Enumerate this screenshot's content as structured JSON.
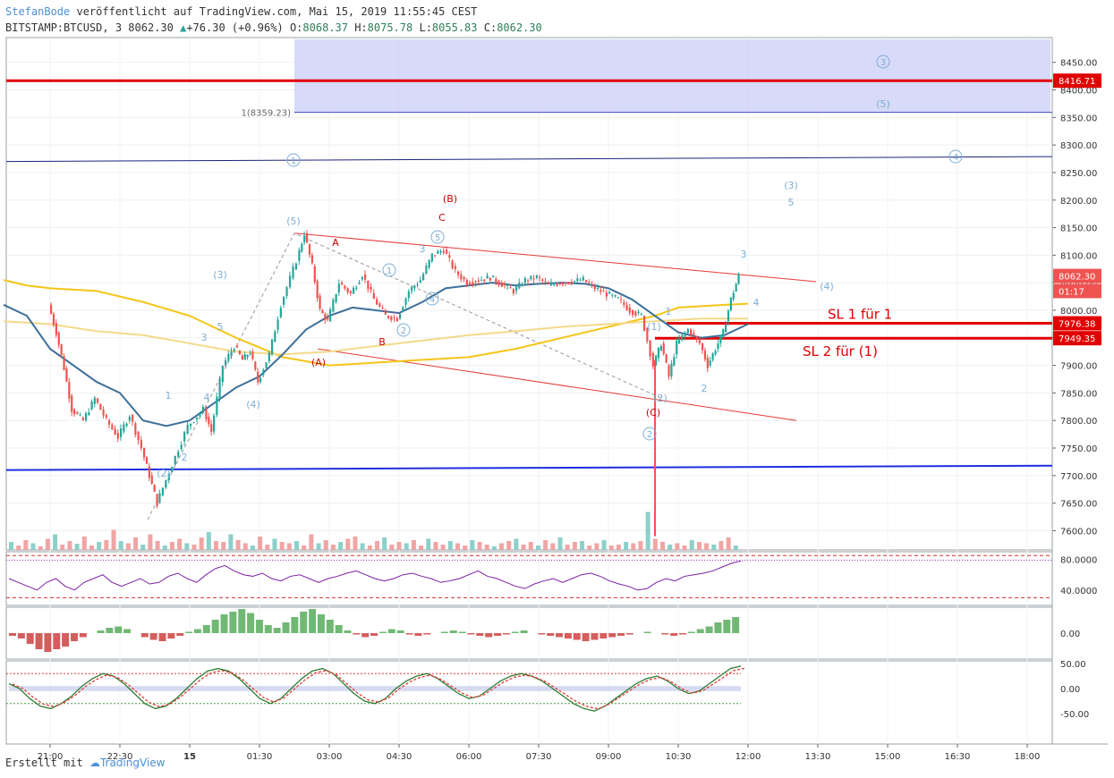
{
  "header": {
    "author": "StefanBode",
    "published": "veröffentlicht auf TradingView.com, Mai 15, 2019 11:55:45 CEST",
    "symbol": "BITSTAMP:BTCUSD, 3",
    "last": "8062.30",
    "change": "+76.30 (+0.96%)",
    "o_label": "O:",
    "o": "8068.37",
    "h_label": "H:",
    "h": "8075.78",
    "l_label": "L:",
    "l": "8055.83",
    "c_label": "C:",
    "c": "8062.30"
  },
  "footer": {
    "created": "Erstellt mit",
    "brand": "TradingView"
  },
  "chart_data": {
    "type": "line",
    "ylim": [
      7565,
      8495
    ],
    "y_ticks": [
      "8450.00",
      "8400.00",
      "8350.00",
      "8300.00",
      "8250.00",
      "8200.00",
      "8150.00",
      "8100.00",
      "8050.00",
      "8000.00",
      "7950.00",
      "7900.00",
      "7850.00",
      "7800.00",
      "7750.00",
      "7700.00",
      "7650.00",
      "7600.00"
    ],
    "x_ticks": [
      "21:00",
      "22:30",
      "15",
      "01:30",
      "03:00",
      "04:30",
      "06:00",
      "07:30",
      "09:00",
      "10:30",
      "12:00",
      "13:30",
      "15:00",
      "16:30",
      "18:00"
    ],
    "price_tags": [
      {
        "label": "8416.71",
        "value": 8416.71,
        "color": "#e00000"
      },
      {
        "label": "8062.30",
        "value": 8062.3,
        "color": "#ef5350"
      },
      {
        "label": "01:17",
        "value": 8035,
        "color": "#ef5350"
      },
      {
        "label": "7976.38",
        "value": 7976.38,
        "color": "#e00000"
      },
      {
        "label": "7949.35",
        "value": 7949.35,
        "color": "#e00000"
      }
    ],
    "horizontal_lines": [
      {
        "value": 8416.71,
        "color": "#e00000"
      },
      {
        "value": 7976.38,
        "color": "#e00000",
        "label": "SL 1 für 1"
      },
      {
        "value": 7949.35,
        "color": "#e00000",
        "label": "SL 2 für (1)"
      }
    ],
    "fib_label": "1(8359.23)",
    "price_path": [
      [
        "21:00",
        8010
      ],
      [
        "21:10",
        7960
      ],
      [
        "21:20",
        7895
      ],
      [
        "21:30",
        7820
      ],
      [
        "21:45",
        7800
      ],
      [
        "22:00",
        7840
      ],
      [
        "22:15",
        7800
      ],
      [
        "22:30",
        7770
      ],
      [
        "22:45",
        7810
      ],
      [
        "23:00",
        7750
      ],
      [
        "23:10",
        7700
      ],
      [
        "23:20",
        7650
      ],
      [
        "23:40",
        7720
      ],
      [
        "00:00",
        7790
      ],
      [
        "00:20",
        7820
      ],
      [
        "00:30",
        7780
      ],
      [
        "00:45",
        7900
      ],
      [
        "01:00",
        7935
      ],
      [
        "01:10",
        7910
      ],
      [
        "01:20",
        7925
      ],
      [
        "01:30",
        7870
      ],
      [
        "01:45",
        7920
      ],
      [
        "02:00",
        8010
      ],
      [
        "02:20",
        8090
      ],
      [
        "02:30",
        8140
      ],
      [
        "02:40",
        8080
      ],
      [
        "02:50",
        8000
      ],
      [
        "03:00",
        7980
      ],
      [
        "03:15",
        8050
      ],
      [
        "03:30",
        8030
      ],
      [
        "03:45",
        8065
      ],
      [
        "04:00",
        8020
      ],
      [
        "04:15",
        7990
      ],
      [
        "04:30",
        7985
      ],
      [
        "04:45",
        8035
      ],
      [
        "05:00",
        8055
      ],
      [
        "05:15",
        8100
      ],
      [
        "05:30",
        8110
      ],
      [
        "05:45",
        8070
      ],
      [
        "06:00",
        8050
      ],
      [
        "06:15",
        8055
      ],
      [
        "06:30",
        8060
      ],
      [
        "07:00",
        8035
      ],
      [
        "07:15",
        8055
      ],
      [
        "07:30",
        8060
      ],
      [
        "07:45",
        8045
      ],
      [
        "08:00",
        8050
      ],
      [
        "08:30",
        8055
      ],
      [
        "08:45",
        8040
      ],
      [
        "09:00",
        8030
      ],
      [
        "09:15",
        8020
      ],
      [
        "09:30",
        8000
      ],
      [
        "09:45",
        7990
      ],
      [
        "10:00",
        7900
      ],
      [
        "10:10",
        7940
      ],
      [
        "10:20",
        7880
      ],
      [
        "10:30",
        7940
      ],
      [
        "10:45",
        7965
      ],
      [
        "11:00",
        7940
      ],
      [
        "11:10",
        7900
      ],
      [
        "11:20",
        7930
      ],
      [
        "11:30",
        7960
      ],
      [
        "11:40",
        8020
      ],
      [
        "11:50",
        8062
      ]
    ],
    "series": [
      {
        "values": [
          [
            "20:00",
            8055
          ],
          [
            "20:30",
            8045
          ],
          [
            "21:00",
            8040
          ],
          [
            "22:00",
            8035
          ],
          [
            "23:00",
            8015
          ],
          [
            "00:00",
            7990
          ],
          [
            "01:00",
            7950
          ],
          [
            "02:00",
            7915
          ],
          [
            "03:00",
            7900
          ],
          [
            "04:00",
            7905
          ],
          [
            "05:00",
            7910
          ],
          [
            "06:00",
            7915
          ],
          [
            "07:00",
            7930
          ],
          [
            "08:00",
            7950
          ],
          [
            "09:00",
            7970
          ],
          [
            "10:00",
            7990
          ],
          [
            "10:30",
            8005
          ],
          [
            "11:30",
            8010
          ],
          [
            "12:00",
            8012
          ]
        ]
      },
      {
        "values": [
          [
            "20:00",
            7980
          ],
          [
            "21:00",
            7975
          ],
          [
            "22:00",
            7962
          ],
          [
            "23:00",
            7955
          ],
          [
            "00:00",
            7940
          ],
          [
            "01:00",
            7925
          ],
          [
            "02:00",
            7920
          ],
          [
            "03:00",
            7925
          ],
          [
            "04:00",
            7935
          ],
          [
            "05:00",
            7945
          ],
          [
            "06:00",
            7955
          ],
          [
            "07:00",
            7962
          ],
          [
            "08:00",
            7970
          ],
          [
            "09:00",
            7975
          ],
          [
            "10:00",
            7980
          ],
          [
            "11:00",
            7985
          ],
          [
            "12:00",
            7985
          ]
        ]
      },
      {
        "values": [
          [
            "20:00",
            8010
          ],
          [
            "20:30",
            7990
          ],
          [
            "21:00",
            7930
          ],
          [
            "21:30",
            7900
          ],
          [
            "22:00",
            7870
          ],
          [
            "22:30",
            7850
          ],
          [
            "23:00",
            7800
          ],
          [
            "23:30",
            7790
          ],
          [
            "00:00",
            7800
          ],
          [
            "00:30",
            7830
          ],
          [
            "01:00",
            7860
          ],
          [
            "01:30",
            7880
          ],
          [
            "02:00",
            7920
          ],
          [
            "02:30",
            7965
          ],
          [
            "03:00",
            7990
          ],
          [
            "03:30",
            8005
          ],
          [
            "04:00",
            8000
          ],
          [
            "04:30",
            7995
          ],
          [
            "05:00",
            8015
          ],
          [
            "05:30",
            8040
          ],
          [
            "06:00",
            8045
          ],
          [
            "06:30",
            8050
          ],
          [
            "07:00",
            8045
          ],
          [
            "07:30",
            8048
          ],
          [
            "08:00",
            8050
          ],
          [
            "08:30",
            8048
          ],
          [
            "09:00",
            8040
          ],
          [
            "09:30",
            8020
          ],
          [
            "10:00",
            7990
          ],
          [
            "10:30",
            7960
          ],
          [
            "11:00",
            7950
          ],
          [
            "11:30",
            7955
          ],
          [
            "12:00",
            7975
          ]
        ]
      }
    ],
    "volume": [
      18,
      10,
      22,
      15,
      8,
      25,
      35,
      12,
      20,
      14,
      30,
      10,
      18,
      22,
      45,
      20,
      15,
      28,
      12,
      35,
      20,
      10,
      18,
      25,
      15,
      12,
      28,
      40,
      20,
      18,
      35,
      22,
      15,
      10,
      30,
      12,
      25,
      18,
      15,
      20,
      10,
      35,
      15,
      22,
      12,
      18,
      25,
      30,
      15,
      10,
      20,
      28,
      12,
      18,
      15,
      22,
      10,
      25,
      18,
      12,
      20,
      15,
      10,
      22,
      18,
      12,
      8,
      15,
      20,
      25,
      12,
      18,
      10,
      22,
      15,
      28,
      12,
      18,
      20,
      10,
      15,
      22,
      10,
      12,
      18,
      15,
      20,
      85,
      25,
      18,
      12,
      15,
      10,
      22,
      18,
      15,
      12,
      20,
      28,
      10
    ],
    "rsi": {
      "ticks": [
        "80.0000",
        "40.0000"
      ],
      "bands": [
        85,
        30
      ],
      "values": [
        55,
        50,
        45,
        40,
        50,
        55,
        45,
        40,
        50,
        55,
        60,
        50,
        45,
        50,
        55,
        48,
        50,
        58,
        62,
        55,
        50,
        60,
        68,
        72,
        65,
        60,
        58,
        62,
        55,
        52,
        58,
        60,
        55,
        50,
        55,
        58,
        62,
        65,
        60,
        55,
        52,
        55,
        60,
        62,
        58,
        55,
        50,
        52,
        55,
        60,
        65,
        58,
        55,
        50,
        45,
        42,
        48,
        52,
        55,
        50,
        55,
        60,
        62,
        58,
        52,
        48,
        45,
        40,
        42,
        50,
        55,
        52,
        58,
        60,
        62,
        65,
        70,
        75,
        78
      ]
    },
    "histogram": {
      "ticks": [
        "0.00"
      ],
      "values": [
        -2,
        -4,
        -8,
        -12,
        -14,
        -12,
        -10,
        -6,
        -3,
        0,
        2,
        4,
        5,
        3,
        0,
        -3,
        -5,
        -6,
        -4,
        -2,
        1,
        3,
        6,
        10,
        14,
        16,
        18,
        15,
        10,
        6,
        4,
        8,
        12,
        16,
        18,
        14,
        10,
        6,
        2,
        -1,
        -3,
        -2,
        1,
        3,
        2,
        -1,
        -2,
        -1,
        0,
        1,
        2,
        1,
        -1,
        -2,
        -3,
        -2,
        -1,
        1,
        2,
        0,
        -1,
        -2,
        -3,
        -4,
        -5,
        -6,
        -5,
        -4,
        -3,
        -2,
        -1,
        0,
        1,
        0,
        -1,
        -2,
        -1,
        1,
        3,
        5,
        8,
        10,
        12
      ]
    },
    "stoch": {
      "ticks": [
        "50.00",
        "0.00",
        "-50.00"
      ],
      "k": [
        10,
        0,
        -20,
        -35,
        -40,
        -30,
        -15,
        5,
        20,
        30,
        25,
        10,
        -10,
        -30,
        -40,
        -35,
        -20,
        0,
        20,
        35,
        40,
        35,
        20,
        0,
        -20,
        -30,
        -20,
        0,
        20,
        35,
        40,
        30,
        10,
        -10,
        -25,
        -30,
        -20,
        0,
        15,
        25,
        30,
        20,
        5,
        -10,
        -20,
        -15,
        0,
        15,
        25,
        30,
        25,
        15,
        0,
        -15,
        -30,
        -40,
        -45,
        -35,
        -20,
        -5,
        10,
        20,
        25,
        15,
        0,
        -10,
        -5,
        10,
        25,
        40,
        45
      ]
    }
  }
}
